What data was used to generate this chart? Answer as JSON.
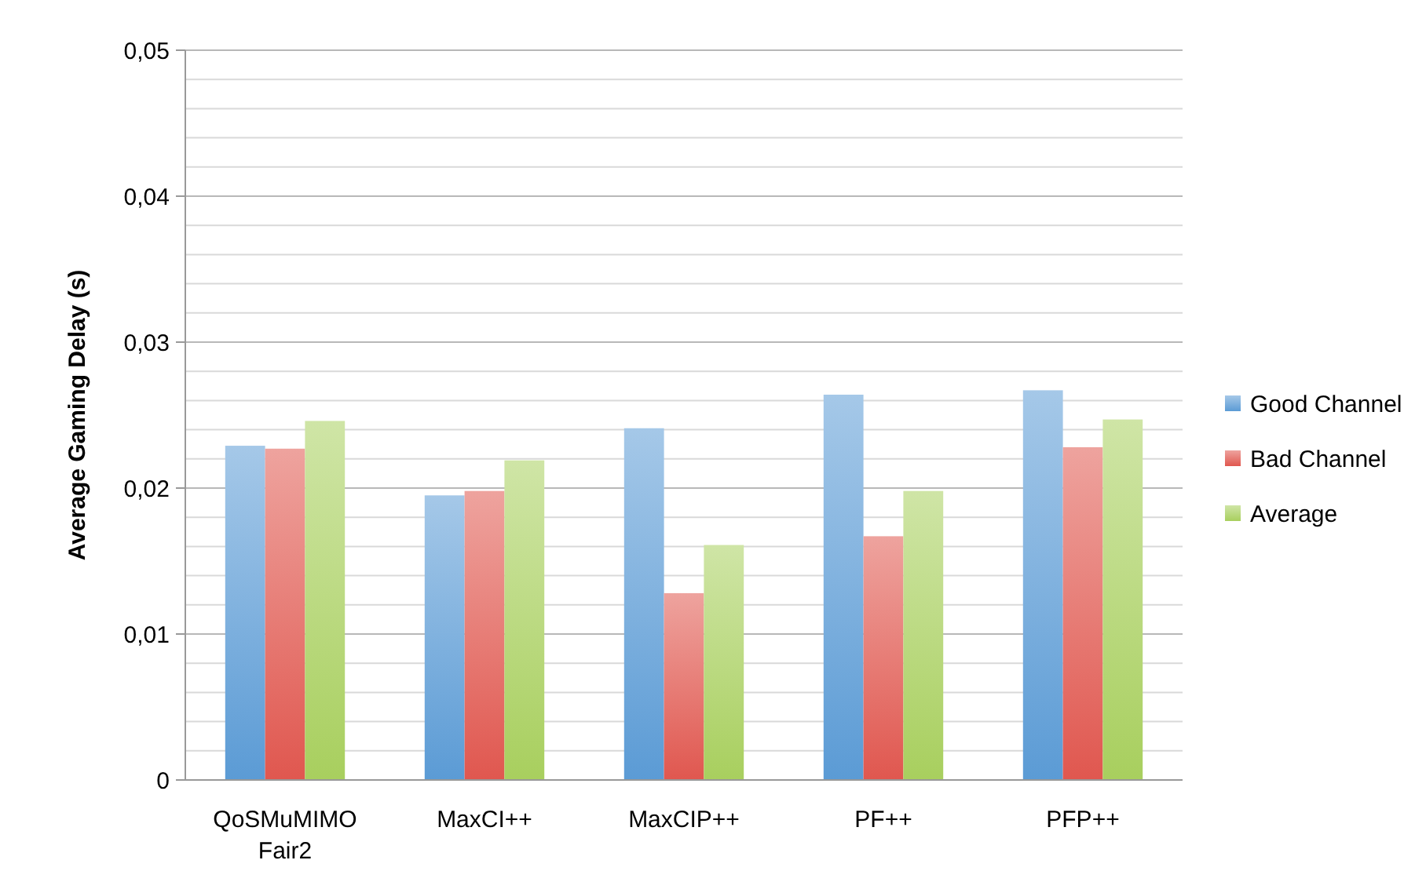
{
  "chart_data": {
    "type": "bar",
    "ylabel": "Average Gaming Delay (s)",
    "categories": [
      "QoSMuMIMO Fair2",
      "MaxCI++",
      "MaxCIP++",
      "PF++",
      "PFP++"
    ],
    "series": [
      {
        "name": "Good Channel",
        "color": "#5b9bd5",
        "values": [
          0.0229,
          0.0195,
          0.0241,
          0.0264,
          0.0267
        ]
      },
      {
        "name": "Bad Channel",
        "color": "#e0574f",
        "values": [
          0.0227,
          0.0198,
          0.0128,
          0.0167,
          0.0228
        ]
      },
      {
        "name": "Average",
        "color": "#a8cf5e",
        "values": [
          0.0246,
          0.0219,
          0.0161,
          0.0198,
          0.0247
        ]
      }
    ],
    "ylim": [
      0,
      0.05
    ],
    "yticks": [
      0,
      {
        "value": 0.002,
        "label": null
      },
      {
        "value": 0.004,
        "label": null
      },
      {
        "value": 0.006,
        "label": null
      },
      {
        "value": 0.008,
        "label": null
      },
      {
        "value": 0.01,
        "label": "0,01"
      },
      {
        "value": 0.012,
        "label": null
      },
      {
        "value": 0.014,
        "label": null
      },
      {
        "value": 0.016,
        "label": null
      },
      {
        "value": 0.018,
        "label": null
      },
      {
        "value": 0.02,
        "label": "0,02"
      },
      {
        "value": 0.022,
        "label": null
      },
      {
        "value": 0.024,
        "label": null
      },
      {
        "value": 0.026,
        "label": null
      },
      {
        "value": 0.028,
        "label": null
      },
      {
        "value": 0.03,
        "label": "0,03"
      },
      {
        "value": 0.032,
        "label": null
      },
      {
        "value": 0.034,
        "label": null
      },
      {
        "value": 0.036,
        "label": null
      },
      {
        "value": 0.038,
        "label": null
      },
      {
        "value": 0.04,
        "label": "0,04"
      },
      {
        "value": 0.042,
        "label": null
      },
      {
        "value": 0.044,
        "label": null
      },
      {
        "value": 0.046,
        "label": null
      },
      {
        "value": 0.048,
        "label": null
      },
      {
        "value": 0.05,
        "label": "0,05"
      }
    ],
    "grid": "y",
    "legend": "right"
  }
}
